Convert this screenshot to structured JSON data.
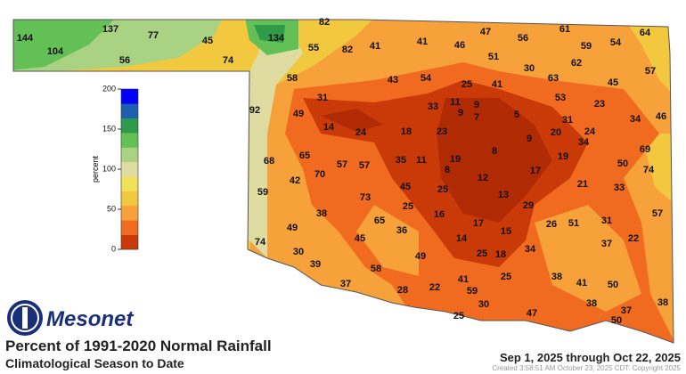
{
  "logo": "Mesonet",
  "title": "Percent of 1991-2020 Normal Rainfall",
  "subtitle": "Climatological Season to Date",
  "date_range": "Sep 1, 2025 through Oct 22, 2025",
  "credit": "Created 3:58:51 AM October 23, 2025 CDT. Copyright 2025",
  "legend": {
    "label": "percent",
    "lim": [
      0,
      200
    ],
    "ticks": [
      0,
      50,
      100,
      150,
      200
    ],
    "colors": [
      "#c93a08",
      "#f06a1f",
      "#f7a13b",
      "#f2c83f",
      "#f0e15a",
      "#dedca0",
      "#aad283",
      "#62c057",
      "#2f9a4a",
      "#1f5fb0",
      "#0000ff"
    ]
  },
  "stations": [
    144,
    104,
    137,
    77,
    56,
    45,
    74,
    134,
    82,
    55,
    82,
    41,
    41,
    46,
    47,
    56,
    61,
    59,
    54,
    64,
    51,
    62,
    57,
    58,
    43,
    54,
    25,
    41,
    30,
    63,
    45,
    92,
    31,
    49,
    14,
    24,
    33,
    11,
    9,
    9,
    7,
    5,
    53,
    23,
    31,
    34,
    46,
    18,
    23,
    20,
    24,
    9,
    34,
    68,
    65,
    57,
    57,
    35,
    11,
    19,
    8,
    8,
    17,
    19,
    69,
    50,
    74,
    42,
    70,
    12,
    21,
    33,
    59,
    45,
    25,
    13,
    73,
    25,
    29,
    38,
    65,
    16,
    17,
    26,
    51,
    31,
    57,
    49,
    36,
    15,
    45,
    14,
    37,
    22,
    74,
    30,
    25,
    18,
    34,
    49,
    39,
    58,
    38,
    41,
    50,
    37,
    28,
    22,
    41,
    59,
    25,
    38,
    30,
    38,
    47,
    25,
    37,
    50
  ]
}
